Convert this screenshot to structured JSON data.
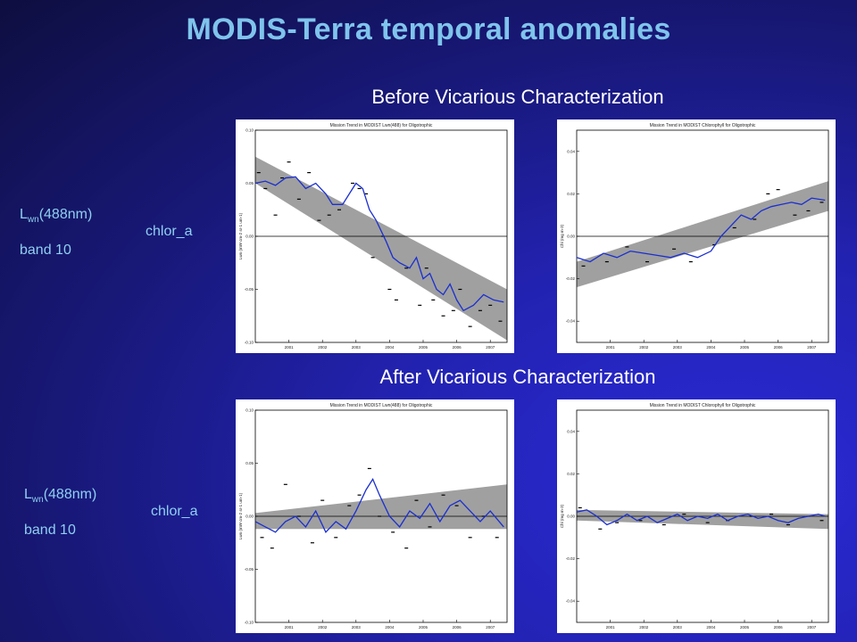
{
  "title": "MODIS-Terra temporal anomalies",
  "before_title": "Before Vicarious Characterization",
  "after_title": "After Vicarious Characterization",
  "row_labels": {
    "lwn_prefix": "L",
    "lwn_sub": "wn",
    "lwn_suffix": "(488nm)",
    "band": "band 10",
    "chlor": "chlor_a"
  },
  "colors": {
    "title": "#7fc4ec",
    "labels": "#8fd0f0",
    "trend_line": "#1a2fd0",
    "band_fill": "#a0a0a0"
  },
  "chart_data": [
    {
      "id": "before_lwn",
      "type": "line",
      "title": "Mission Trend in MODIST Lwn(488) for Oligotrophic",
      "ylabel": "Lwn (mW cm-2 sr-1 um-1)",
      "xlabel": "",
      "xlim": [
        2000.0,
        2007.5
      ],
      "ylim": [
        -0.1,
        0.1
      ],
      "xticks": [
        "2001",
        "2002",
        "2003",
        "2004",
        "2005",
        "2006",
        "2007"
      ],
      "yticks": [
        "0.10",
        "0.05",
        "0.00",
        "-0.05",
        "-0.10"
      ],
      "yvals": [
        0.1,
        0.05,
        0.0,
        -0.05,
        -0.1
      ],
      "band_upper": [
        [
          2000.0,
          0.075
        ],
        [
          2007.5,
          -0.05
        ]
      ],
      "band_lower": [
        [
          2000.0,
          0.05
        ],
        [
          2007.5,
          -0.098
        ]
      ],
      "series": [
        {
          "x": [
            2000.0,
            2000.3,
            2000.6,
            2000.9,
            2001.2,
            2001.5,
            2001.8,
            2002.1,
            2002.3,
            2002.6,
            2002.8,
            2003.0,
            2003.2,
            2003.4,
            2003.6,
            2003.9,
            2004.1,
            2004.3,
            2004.6,
            2004.8,
            2005.0,
            2005.2,
            2005.4,
            2005.6,
            2005.8,
            2006.0,
            2006.2,
            2006.5,
            2006.8,
            2007.1,
            2007.4
          ],
          "y": [
            0.05,
            0.052,
            0.048,
            0.055,
            0.056,
            0.045,
            0.05,
            0.04,
            0.03,
            0.03,
            0.04,
            0.05,
            0.045,
            0.025,
            0.015,
            -0.005,
            -0.02,
            -0.025,
            -0.03,
            -0.02,
            -0.04,
            -0.035,
            -0.05,
            -0.055,
            -0.045,
            -0.06,
            -0.07,
            -0.065,
            -0.055,
            -0.06,
            -0.062
          ]
        }
      ],
      "scatter": {
        "x": [
          2000.1,
          2000.3,
          2000.6,
          2000.8,
          2001.0,
          2001.3,
          2001.6,
          2001.9,
          2002.2,
          2002.5,
          2002.9,
          2003.1,
          2003.3,
          2003.5,
          2003.8,
          2004.0,
          2004.2,
          2004.5,
          2004.9,
          2005.1,
          2005.3,
          2005.6,
          2005.9,
          2006.1,
          2006.4,
          2006.7,
          2007.0,
          2007.3
        ],
        "y": [
          0.06,
          0.045,
          0.02,
          0.055,
          0.07,
          0.035,
          0.06,
          0.015,
          0.02,
          0.025,
          0.05,
          0.045,
          0.04,
          -0.02,
          0.0,
          -0.05,
          -0.06,
          -0.03,
          -0.065,
          -0.03,
          -0.06,
          -0.075,
          -0.07,
          -0.05,
          -0.085,
          -0.07,
          -0.065,
          -0.08
        ]
      }
    },
    {
      "id": "before_chl",
      "type": "line",
      "title": "Mission Trend in MODIST Chlorophyll for Oligotrophic",
      "ylabel": "Chl (mg m-3)",
      "xlabel": "",
      "xlim": [
        2000.0,
        2007.5
      ],
      "ylim": [
        -0.05,
        0.05
      ],
      "xticks": [
        "2001",
        "2002",
        "2003",
        "2004",
        "2005",
        "2006",
        "2007"
      ],
      "yticks": [
        "0.04",
        "0.02",
        "0.00",
        "-0.02",
        "-0.04"
      ],
      "yvals": [
        0.04,
        0.02,
        0.0,
        -0.02,
        -0.04
      ],
      "band_upper": [
        [
          2000.0,
          -0.012
        ],
        [
          2007.5,
          0.026
        ]
      ],
      "band_lower": [
        [
          2000.0,
          -0.024
        ],
        [
          2007.5,
          0.012
        ]
      ],
      "series": [
        {
          "x": [
            2000.0,
            2000.4,
            2000.8,
            2001.2,
            2001.6,
            2002.0,
            2002.4,
            2002.8,
            2003.2,
            2003.6,
            2004.0,
            2004.3,
            2004.6,
            2004.9,
            2005.2,
            2005.5,
            2005.8,
            2006.1,
            2006.4,
            2006.7,
            2007.0,
            2007.4
          ],
          "y": [
            -0.01,
            -0.012,
            -0.008,
            -0.01,
            -0.007,
            -0.008,
            -0.009,
            -0.01,
            -0.008,
            -0.01,
            -0.007,
            0.0,
            0.005,
            0.01,
            0.008,
            0.012,
            0.014,
            0.015,
            0.016,
            0.015,
            0.018,
            0.017
          ]
        }
      ],
      "scatter": {
        "x": [
          2000.2,
          2000.9,
          2001.5,
          2002.1,
          2002.9,
          2003.4,
          2004.1,
          2004.7,
          2005.3,
          2005.7,
          2006.0,
          2006.5,
          2006.9,
          2007.3
        ],
        "y": [
          -0.014,
          -0.012,
          -0.005,
          -0.012,
          -0.006,
          -0.012,
          -0.004,
          0.004,
          0.008,
          0.02,
          0.022,
          0.01,
          0.012,
          0.016
        ]
      }
    },
    {
      "id": "after_lwn",
      "type": "line",
      "title": "Mission Trend in MODIST Lwn(488) for Oligotrophic",
      "ylabel": "Lwn (mW cm-2 sr-1 um-1)",
      "xlabel": "",
      "xlim": [
        2000.0,
        2007.5
      ],
      "ylim": [
        -0.1,
        0.1
      ],
      "xticks": [
        "2001",
        "2002",
        "2003",
        "2004",
        "2005",
        "2006",
        "2007"
      ],
      "yticks": [
        "0.10",
        "0.05",
        "0.00",
        "-0.05",
        "-0.10"
      ],
      "yvals": [
        0.1,
        0.05,
        0.0,
        -0.05,
        -0.1
      ],
      "band_upper": [
        [
          2000.0,
          0.003
        ],
        [
          2007.5,
          0.03
        ]
      ],
      "band_lower": [
        [
          2000.0,
          -0.012
        ],
        [
          2007.5,
          -0.012
        ]
      ],
      "series": [
        {
          "x": [
            2000.0,
            2000.3,
            2000.6,
            2000.9,
            2001.2,
            2001.5,
            2001.8,
            2002.1,
            2002.4,
            2002.7,
            2003.0,
            2003.3,
            2003.5,
            2003.7,
            2004.0,
            2004.3,
            2004.6,
            2004.9,
            2005.2,
            2005.5,
            2005.8,
            2006.1,
            2006.4,
            2006.7,
            2007.0,
            2007.4
          ],
          "y": [
            -0.005,
            -0.01,
            -0.015,
            -0.005,
            0.0,
            -0.01,
            0.005,
            -0.015,
            -0.005,
            -0.012,
            0.005,
            0.025,
            0.035,
            0.02,
            0.0,
            -0.01,
            0.005,
            -0.002,
            0.012,
            -0.005,
            0.01,
            0.015,
            0.005,
            -0.005,
            0.005,
            -0.01
          ]
        }
      ],
      "scatter": {
        "x": [
          2000.2,
          2000.5,
          2000.9,
          2001.3,
          2001.7,
          2002.0,
          2002.4,
          2002.8,
          2003.1,
          2003.4,
          2003.7,
          2004.1,
          2004.5,
          2004.8,
          2005.2,
          2005.6,
          2006.0,
          2006.4,
          2006.8,
          2007.2
        ],
        "y": [
          -0.02,
          -0.03,
          0.03,
          0.0,
          -0.025,
          0.015,
          -0.02,
          0.01,
          0.02,
          0.045,
          0.0,
          -0.015,
          -0.03,
          0.015,
          -0.01,
          0.02,
          0.01,
          -0.02,
          0.0,
          -0.02
        ]
      }
    },
    {
      "id": "after_chl",
      "type": "line",
      "title": "Mission Trend in MODIST Chlorophyll for Oligotrophic",
      "ylabel": "Chl (mg m-3)",
      "xlabel": "",
      "xlim": [
        2000.0,
        2007.5
      ],
      "ylim": [
        -0.05,
        0.05
      ],
      "xticks": [
        "2001",
        "2002",
        "2003",
        "2004",
        "2005",
        "2006",
        "2007"
      ],
      "yticks": [
        "0.04",
        "0.02",
        "0.00",
        "-0.02",
        "-0.04"
      ],
      "yvals": [
        0.04,
        0.02,
        0.0,
        -0.02,
        -0.04
      ],
      "band_upper": [
        [
          2000.0,
          0.003
        ],
        [
          2007.5,
          0.001
        ]
      ],
      "band_lower": [
        [
          2000.0,
          -0.002
        ],
        [
          2007.5,
          -0.006
        ]
      ],
      "series": [
        {
          "x": [
            2000.0,
            2000.3,
            2000.6,
            2000.9,
            2001.2,
            2001.5,
            2001.8,
            2002.1,
            2002.4,
            2002.7,
            2003.0,
            2003.3,
            2003.6,
            2003.9,
            2004.2,
            2004.5,
            2004.8,
            2005.1,
            2005.4,
            2005.7,
            2006.0,
            2006.3,
            2006.6,
            2006.9,
            2007.2,
            2007.4
          ],
          "y": [
            0.002,
            0.003,
            0.0,
            -0.004,
            -0.002,
            0.001,
            -0.002,
            0.0,
            -0.003,
            -0.001,
            0.001,
            -0.002,
            0.0,
            -0.001,
            0.001,
            -0.002,
            0.0,
            0.001,
            -0.001,
            0.0,
            -0.002,
            -0.003,
            -0.001,
            0.0,
            0.001,
            0.0
          ]
        }
      ],
      "scatter": {
        "x": [
          2000.1,
          2000.7,
          2001.2,
          2001.9,
          2002.6,
          2003.2,
          2003.9,
          2004.5,
          2005.2,
          2005.8,
          2006.3,
          2006.9,
          2007.3
        ],
        "y": [
          0.004,
          -0.006,
          -0.003,
          -0.002,
          -0.004,
          0.001,
          -0.003,
          -0.002,
          0.0,
          0.001,
          -0.004,
          0.0,
          -0.002
        ]
      }
    }
  ]
}
